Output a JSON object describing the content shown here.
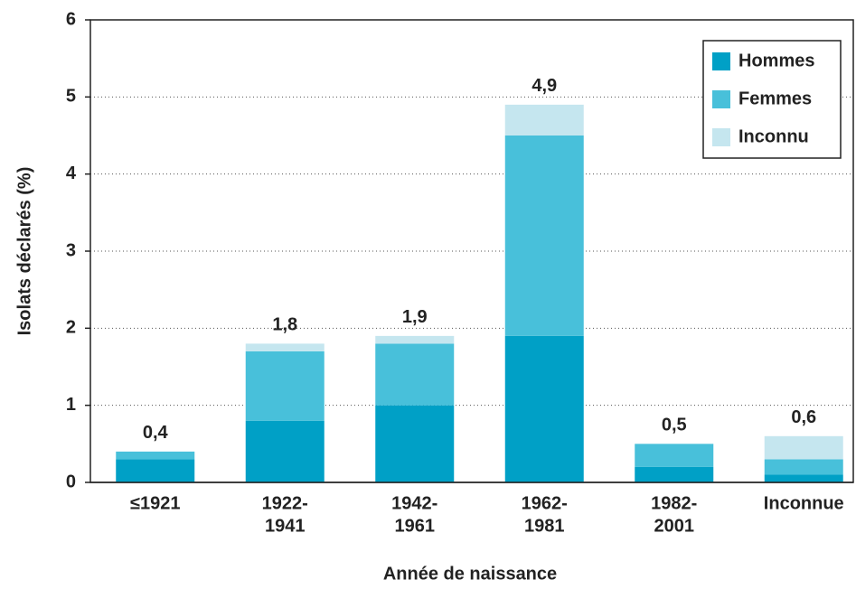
{
  "chart_data": {
    "type": "stacked_bar",
    "xlabel": "Année de naissance",
    "ylabel": "Isolats déclarés (%)",
    "categories": [
      [
        "≤1921"
      ],
      [
        "1922-",
        "1941"
      ],
      [
        "1942-",
        "1961"
      ],
      [
        "1962-",
        "1981"
      ],
      [
        "1982-",
        "2001"
      ],
      [
        "Inconnue"
      ]
    ],
    "series": [
      {
        "name": "Hommes",
        "color": "#00a0c6",
        "values": [
          0.3,
          0.8,
          1.0,
          1.9,
          0.2,
          0.1
        ]
      },
      {
        "name": "Femmes",
        "color": "#48c0da",
        "values": [
          0.1,
          0.9,
          0.8,
          2.6,
          0.3,
          0.2
        ]
      },
      {
        "name": "Inconnu",
        "color": "#c5e6ef",
        "values": [
          0,
          0.1,
          0.1,
          0.4,
          0,
          0.3
        ]
      }
    ],
    "totals": [
      0.4,
      1.8,
      1.9,
      4.9,
      0.5,
      0.6
    ],
    "total_labels": [
      "0,4",
      "1,8",
      "1,9",
      "4,9",
      "0,5",
      "0,6"
    ],
    "ylim": [
      0,
      6
    ],
    "yticks": [
      0,
      1,
      2,
      3,
      4,
      5,
      6
    ],
    "grid": true,
    "legend": "top-right"
  }
}
